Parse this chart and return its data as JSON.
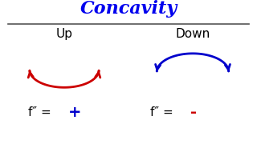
{
  "title": "Concavity",
  "title_color": "#0000ee",
  "title_fontsize": 16,
  "title_fontstyle": "italic",
  "up_label": "Up",
  "down_label": "Down",
  "label_fontsize": 11,
  "up_curve_color": "#cc0000",
  "down_curve_color": "#0000cc",
  "plus_sign": "+",
  "minus_sign": "-",
  "plus_color": "#0000cc",
  "minus_color": "#cc0000",
  "formula_fontsize": 11,
  "background_color": "#ffffff",
  "divider_color": "#555555"
}
